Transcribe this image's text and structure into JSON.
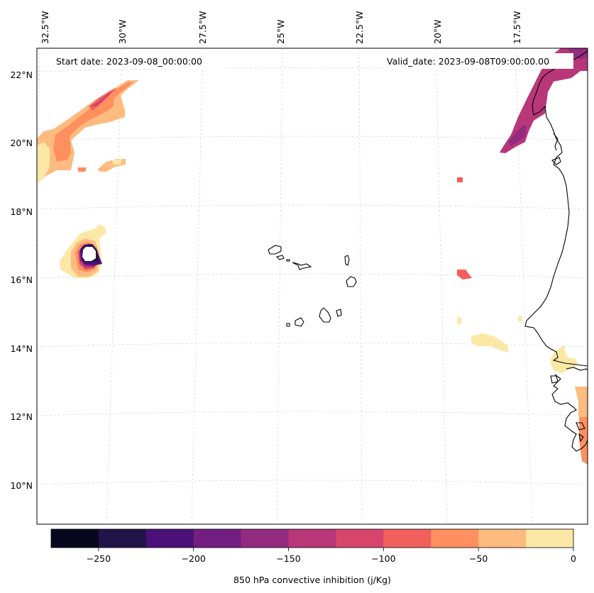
{
  "header": {
    "start_date": "Start date: 2023-09-08_00:00:00",
    "valid_date": "Valid_date: 2023-09-08T09:00:00.00"
  },
  "map": {
    "longitude_labels": [
      "32.5°W",
      "30°W",
      "27.5°W",
      "25°W",
      "22.5°W",
      "20°W",
      "17.5°W"
    ],
    "latitude_labels": [
      "22°N",
      "20°N",
      "18°N",
      "16°N",
      "14°N",
      "12°N",
      "10°N"
    ]
  },
  "colorbar": {
    "label": "850 hPa convective inhibition (j/Kg)",
    "tick_labels": [
      "−250",
      "−200",
      "−150",
      "−100",
      "−50",
      "0"
    ],
    "colors": [
      "#08071e",
      "#211449",
      "#4a1078",
      "#721f81",
      "#932b80",
      "#b73779",
      "#d8456c",
      "#f1605d",
      "#fe8f5e",
      "#febb80",
      "#fce8a6"
    ]
  },
  "legend_colors": {
    "c_m25": "#fce8a6",
    "c_m50": "#febb80",
    "c_m75": "#fe8f5e",
    "c_m100": "#f1605d",
    "c_m125": "#d8456c",
    "c_m150": "#b73779",
    "c_m175": "#932b80",
    "c_m200": "#721f81",
    "c_m225": "#4a1078",
    "c_m250": "#211449"
  }
}
